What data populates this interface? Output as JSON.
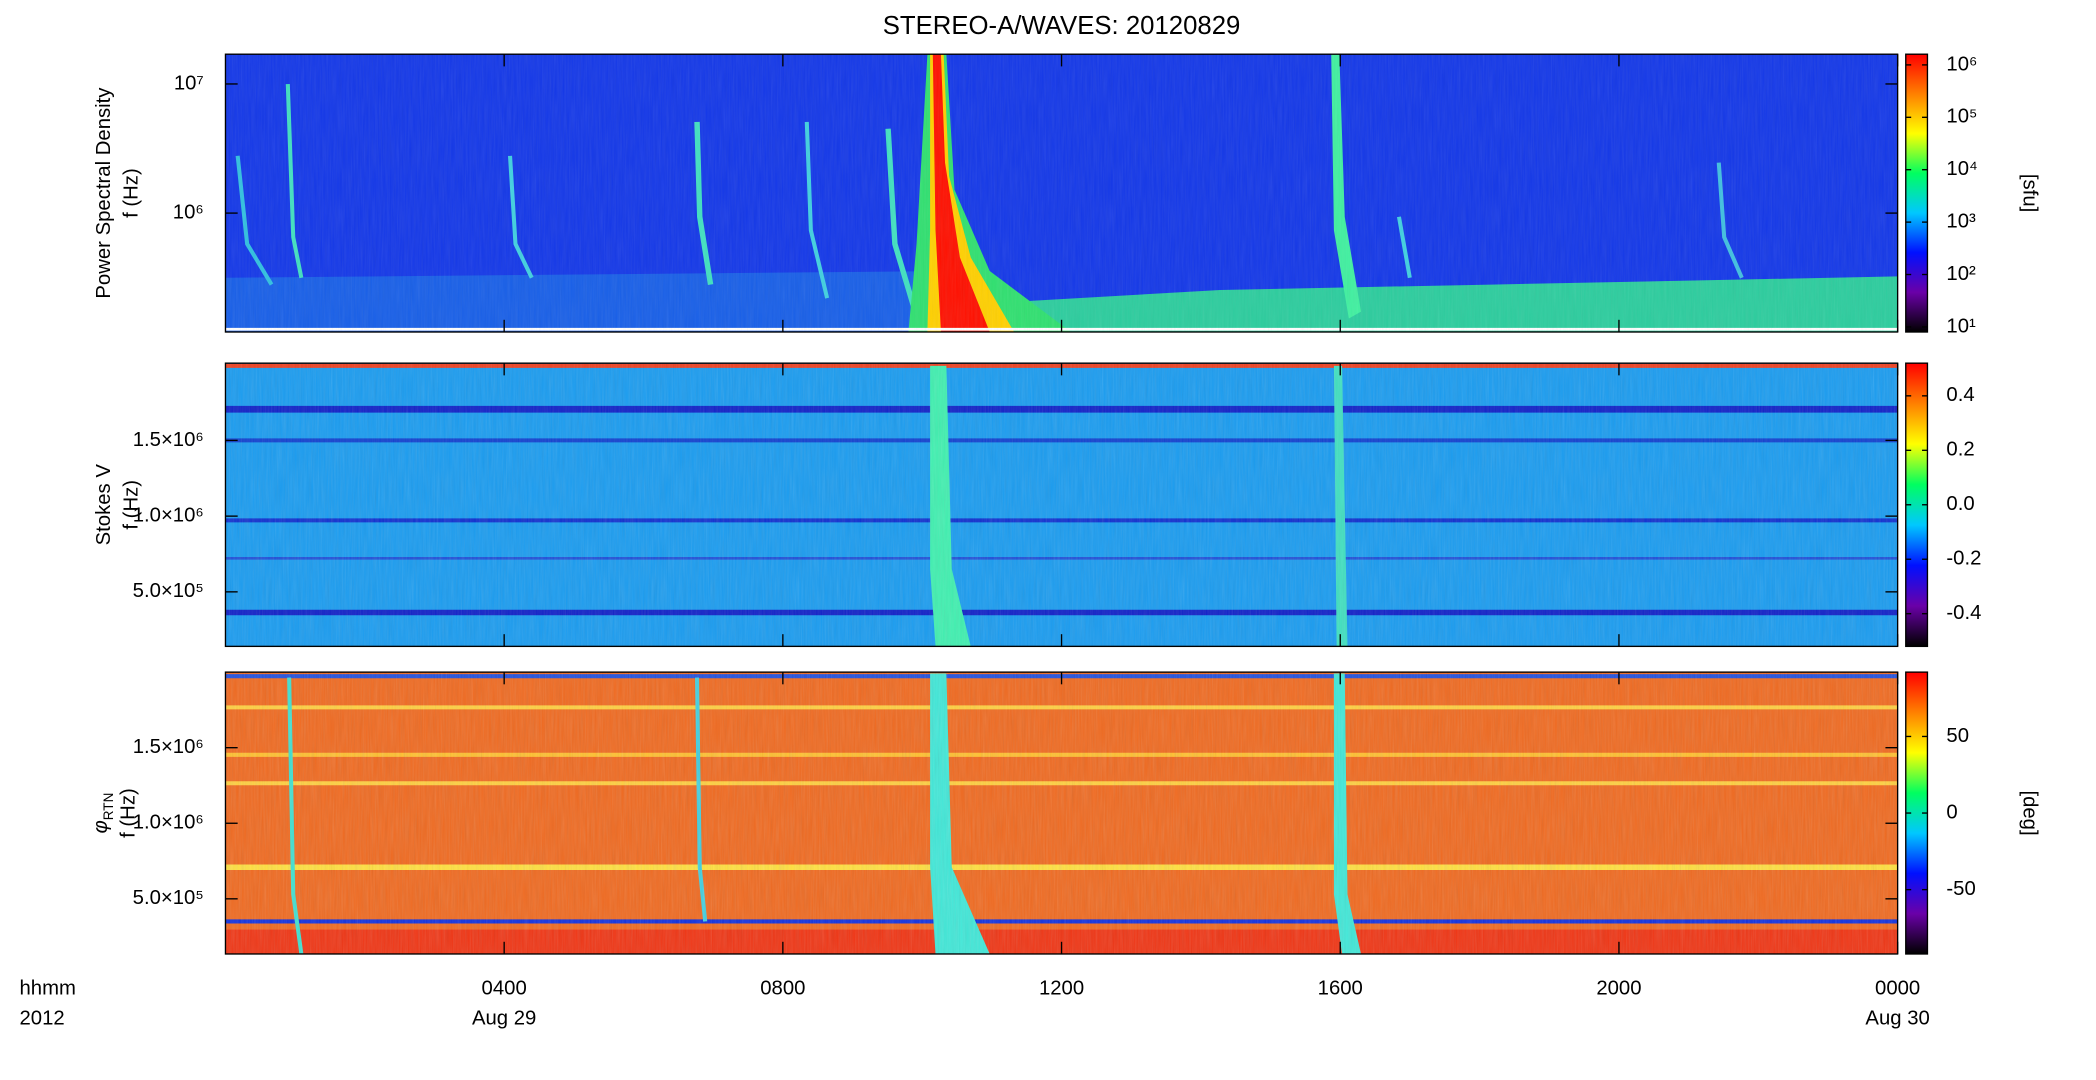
{
  "title": "STEREO-A/WAVES: 20120829",
  "chart_data": [
    {
      "type": "spectrogram",
      "ylabel": [
        "Power Spectral Density",
        "f (Hz)"
      ],
      "yscale": "log",
      "ylim": [
        120000,
        17000000
      ],
      "yticks": [
        {
          "value": 1000000,
          "label": "10⁶"
        },
        {
          "value": 10000000,
          "label": "10⁷"
        }
      ],
      "background": "#1438e8",
      "colormap": [
        "#000000",
        "#6a00a8",
        "#0010ff",
        "#00c8ff",
        "#00ff60",
        "#ffff00",
        "#ff8000",
        "#ff0000"
      ],
      "cscale": "log",
      "clim": [
        8,
        1600000
      ],
      "cticks": [
        {
          "value": 10,
          "label": "10¹"
        },
        {
          "value": 100,
          "label": "10²"
        },
        {
          "value": 1000,
          "label": "10³"
        },
        {
          "value": 10000,
          "label": "10⁴"
        },
        {
          "value": 100000,
          "label": "10⁵"
        },
        {
          "value": 1000000,
          "label": "10⁶"
        }
      ],
      "clabel": "[sfu]"
    },
    {
      "type": "spectrogram",
      "ylabel": [
        "Stokes V",
        "f (Hz)"
      ],
      "yscale": "linear",
      "ylim": [
        140000,
        2010000
      ],
      "yticks": [
        {
          "value": 500000,
          "label": "5.0×10⁵"
        },
        {
          "value": 1000000,
          "label": "1.0×10⁶"
        },
        {
          "value": 1500000,
          "label": "1.5×10⁶"
        }
      ],
      "background": "#1a9cf0",
      "colormap": [
        "#000000",
        "#6a00a8",
        "#0010ff",
        "#00c8ff",
        "#00ff60",
        "#ffff00",
        "#ff8000",
        "#ff0000"
      ],
      "cscale": "linear",
      "clim": [
        -0.52,
        0.52
      ],
      "cticks": [
        0.4,
        0.2,
        {
          "value": 0,
          "label": "0.0"
        },
        -0.2,
        -0.4
      ]
    },
    {
      "type": "spectrogram",
      "ylabel_symbol": "φ",
      "ylabel_subscript": "RTN",
      "ylabel": [
        "f (Hz)"
      ],
      "yscale": "linear",
      "ylim": [
        135000,
        2000000
      ],
      "yticks": [
        {
          "value": 500000,
          "label": "5.0×10⁵"
        },
        {
          "value": 1000000,
          "label": "1.0×10⁶"
        },
        {
          "value": 1500000,
          "label": "1.5×10⁶"
        }
      ],
      "background": "#f06a20",
      "colormap": [
        "#000000",
        "#6a00a8",
        "#0010ff",
        "#00c8ff",
        "#00ff60",
        "#ffff00",
        "#ff8000",
        "#ff0000"
      ],
      "cscale": "linear",
      "clim": [
        -92,
        92
      ],
      "cticks": [
        50,
        0,
        -50
      ],
      "clabel": "[deg]",
      "xlim": [
        0,
        24
      ],
      "xticks": [
        {
          "value": 4,
          "label": "0400"
        },
        {
          "value": 8,
          "label": "0800"
        },
        {
          "value": 12,
          "label": "1200"
        },
        {
          "value": 16,
          "label": "1600"
        },
        {
          "value": 20,
          "label": "2000"
        },
        {
          "value": 24,
          "label": "0000"
        }
      ],
      "x_date_labels": [
        {
          "value": 4,
          "label": "Aug 29"
        },
        {
          "value": 24,
          "label": "Aug 30"
        }
      ],
      "xlabel": [
        "hhmm",
        "2012"
      ]
    }
  ]
}
